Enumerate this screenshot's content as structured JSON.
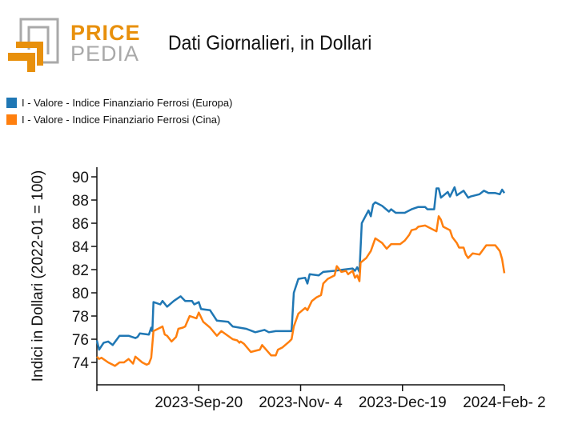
{
  "logo": {
    "top": "PRICE",
    "bottom": "PEDIA"
  },
  "chart_data": {
    "type": "line",
    "title": "Dati Giornalieri, in Dollari",
    "xlabel": "",
    "ylabel": "Indici in Dollari (2022-01 = 100)",
    "x_unit": "days since 2023-Aug-6",
    "xlim": [
      0,
      180
    ],
    "ylim": [
      72.07,
      90.83
    ],
    "yticks": [
      74,
      76,
      78,
      80,
      82,
      84,
      86,
      88,
      90
    ],
    "xticks": [
      {
        "day": 0,
        "label": ""
      },
      {
        "day": 45,
        "label": "2023-Sep-20"
      },
      {
        "day": 90,
        "label": "2023-Nov- 4"
      },
      {
        "day": 135,
        "label": "2023-Dec-19"
      },
      {
        "day": 180,
        "label": "2024-Feb- 2"
      }
    ],
    "legend_position": "top-left",
    "series": [
      {
        "name": "I - Valore - Indice Finanziario Ferrosi (Europa)",
        "color": "#1f77b4",
        "points": [
          [
            0,
            75.9
          ],
          [
            1,
            75.1
          ],
          [
            3,
            75.7
          ],
          [
            5,
            75.8
          ],
          [
            7,
            75.5
          ],
          [
            10,
            76.3
          ],
          [
            14,
            76.3
          ],
          [
            17,
            76.1
          ],
          [
            18,
            76.2
          ],
          [
            19,
            76.5
          ],
          [
            23,
            76.4
          ],
          [
            24,
            77.0
          ],
          [
            24.5,
            76.7
          ],
          [
            25,
            79.2
          ],
          [
            28,
            79.0
          ],
          [
            29,
            79.3
          ],
          [
            31,
            78.8
          ],
          [
            34,
            79.3
          ],
          [
            37,
            79.7
          ],
          [
            39,
            79.3
          ],
          [
            42,
            79.3
          ],
          [
            43,
            79.0
          ],
          [
            45,
            79.2
          ],
          [
            46,
            78.6
          ],
          [
            50,
            78.5
          ],
          [
            53,
            77.6
          ],
          [
            58,
            77.5
          ],
          [
            60,
            77.1
          ],
          [
            66,
            76.9
          ],
          [
            70,
            76.6
          ],
          [
            74,
            76.8
          ],
          [
            76,
            76.6
          ],
          [
            79,
            76.7
          ],
          [
            86,
            76.7
          ],
          [
            87,
            80.0
          ],
          [
            89,
            81.2
          ],
          [
            92,
            81.3
          ],
          [
            93,
            80.8
          ],
          [
            94,
            81.6
          ],
          [
            98,
            81.5
          ],
          [
            100,
            81.8
          ],
          [
            105,
            81.9
          ],
          [
            109,
            82.0
          ],
          [
            113,
            82.1
          ],
          [
            114,
            81.9
          ],
          [
            115,
            82.2
          ],
          [
            116,
            81.8
          ],
          [
            117,
            86.0
          ],
          [
            120,
            87.1
          ],
          [
            121,
            86.6
          ],
          [
            122,
            87.6
          ],
          [
            123,
            87.8
          ],
          [
            126,
            87.5
          ],
          [
            129,
            87.0
          ],
          [
            130,
            87.2
          ],
          [
            132,
            86.9
          ],
          [
            136,
            86.9
          ],
          [
            139,
            87.2
          ],
          [
            142,
            87.4
          ],
          [
            145,
            87.4
          ],
          [
            146,
            87.2
          ],
          [
            149,
            87.2
          ],
          [
            150,
            89.0
          ],
          [
            151,
            89.0
          ],
          [
            152,
            88.2
          ],
          [
            155,
            88.7
          ],
          [
            156,
            88.3
          ],
          [
            158,
            89.1
          ],
          [
            159,
            88.4
          ],
          [
            162,
            88.8
          ],
          [
            164,
            88.2
          ],
          [
            165,
            88.3
          ],
          [
            169,
            88.5
          ],
          [
            171,
            88.8
          ],
          [
            173,
            88.6
          ],
          [
            176,
            88.6
          ],
          [
            178,
            88.5
          ],
          [
            179,
            88.9
          ],
          [
            180,
            88.6
          ]
        ]
      },
      {
        "name": "I - Valore - Indice Finanziario Ferrosi (Cina)",
        "color": "#ff7f0e",
        "points": [
          [
            0,
            74.5
          ],
          [
            1,
            74.3
          ],
          [
            2,
            74.4
          ],
          [
            5,
            74.0
          ],
          [
            7,
            73.8
          ],
          [
            8,
            73.7
          ],
          [
            10,
            74.0
          ],
          [
            12,
            74.0
          ],
          [
            14,
            74.3
          ],
          [
            16,
            73.9
          ],
          [
            17,
            74.5
          ],
          [
            20,
            74.0
          ],
          [
            22,
            73.8
          ],
          [
            23,
            73.9
          ],
          [
            24,
            74.4
          ],
          [
            25,
            76.7
          ],
          [
            29,
            77.1
          ],
          [
            30,
            76.4
          ],
          [
            31,
            76.3
          ],
          [
            33,
            75.8
          ],
          [
            35,
            76.2
          ],
          [
            36,
            76.9
          ],
          [
            38,
            77.0
          ],
          [
            39,
            77.1
          ],
          [
            41,
            78.0
          ],
          [
            44,
            77.8
          ],
          [
            45,
            78.3
          ],
          [
            47,
            77.5
          ],
          [
            50,
            77.0
          ],
          [
            53,
            76.3
          ],
          [
            55,
            76.7
          ],
          [
            60,
            76.0
          ],
          [
            62,
            75.9
          ],
          [
            63,
            75.7
          ],
          [
            63.5,
            75.8
          ],
          [
            65,
            75.6
          ],
          [
            68,
            74.9
          ],
          [
            70,
            75.0
          ],
          [
            72,
            75.1
          ],
          [
            73,
            75.5
          ],
          [
            77,
            74.6
          ],
          [
            79,
            74.6
          ],
          [
            80,
            75.1
          ],
          [
            82,
            75.3
          ],
          [
            85,
            75.8
          ],
          [
            86,
            76.0
          ],
          [
            87,
            77.1
          ],
          [
            89,
            78.2
          ],
          [
            92,
            78.7
          ],
          [
            93,
            78.5
          ],
          [
            95,
            79.3
          ],
          [
            97,
            79.6
          ],
          [
            99,
            79.8
          ],
          [
            100,
            80.8
          ],
          [
            102,
            81.2
          ],
          [
            105,
            81.5
          ],
          [
            106,
            82.3
          ],
          [
            108,
            81.8
          ],
          [
            110,
            81.9
          ],
          [
            111,
            81.6
          ],
          [
            113,
            81.9
          ],
          [
            114,
            81.3
          ],
          [
            115,
            81.5
          ],
          [
            116,
            81.0
          ],
          [
            116.5,
            82.6
          ],
          [
            119,
            83.0
          ],
          [
            121,
            83.6
          ],
          [
            123,
            84.7
          ],
          [
            126,
            84.3
          ],
          [
            128,
            83.8
          ],
          [
            130,
            84.2
          ],
          [
            134,
            84.2
          ],
          [
            136,
            84.5
          ],
          [
            138,
            85.0
          ],
          [
            139,
            85.4
          ],
          [
            141,
            85.5
          ],
          [
            142,
            85.7
          ],
          [
            145,
            85.8
          ],
          [
            150,
            85.3
          ],
          [
            151,
            86.6
          ],
          [
            152,
            86.3
          ],
          [
            153,
            85.7
          ],
          [
            156,
            85.4
          ],
          [
            157,
            84.8
          ],
          [
            159,
            84.3
          ],
          [
            160,
            83.9
          ],
          [
            162,
            83.9
          ],
          [
            163,
            83.3
          ],
          [
            164,
            83.0
          ],
          [
            166,
            83.4
          ],
          [
            169,
            83.3
          ],
          [
            172,
            84.1
          ],
          [
            176,
            84.1
          ],
          [
            178,
            83.6
          ],
          [
            179,
            82.9
          ],
          [
            180,
            81.7
          ]
        ]
      }
    ]
  }
}
